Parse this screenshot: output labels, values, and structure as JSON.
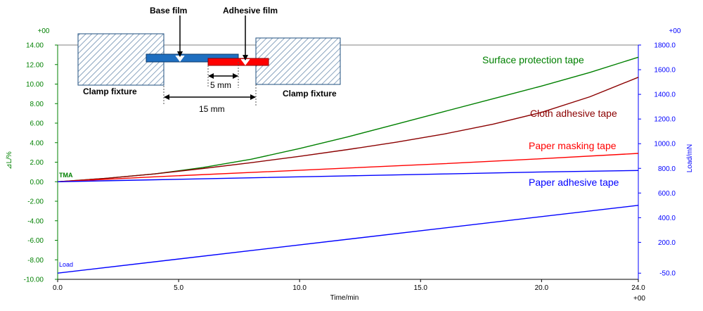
{
  "colors": {
    "left_axis": "#008000",
    "right_axis": "#0000ff",
    "surface_protection": "#008000",
    "cloth_adhesive": "#8b0000",
    "paper_masking": "#ff0000",
    "paper_adhesive": "#0000ff",
    "load": "#0000ff",
    "base_film": "#1f6fc0",
    "adhesive_film": "#ff0000",
    "fixture_hatch": "#6f8fb0"
  },
  "chart_data": {
    "type": "line",
    "title": "",
    "xlabel": "Time/min",
    "ylabel_left": "⊿L/%",
    "ylabel_right": "Load/mN",
    "x_exponent_label": "+00",
    "y_left_exponent_label": "+00",
    "y_right_exponent_label": "+00",
    "xlim": [
      0,
      24
    ],
    "ylim_left": [
      -10,
      14
    ],
    "ylim_right": [
      -100,
      1800
    ],
    "x_ticks": [
      "0.0",
      "5.0",
      "10.0",
      "15.0",
      "20.0",
      "24.0"
    ],
    "y_left_ticks": [
      "-10.00",
      "-8.00",
      "-6.00",
      "-4.00",
      "-2.00",
      "0.00",
      "2.00",
      "4.00",
      "6.00",
      "8.00",
      "10.00",
      "12.00",
      "14.00"
    ],
    "y_right_ticks": [
      "-50.0",
      "200.0",
      "400.0",
      "600.0",
      "800.0",
      "1000.0",
      "1200.0",
      "1400.0",
      "1600.0",
      "1800.0"
    ],
    "grid": false,
    "series": [
      {
        "name": "Surface protection tape",
        "axis": "left",
        "x": [
          0,
          2,
          4,
          6,
          8,
          10,
          12,
          14,
          16,
          18,
          20,
          22,
          24
        ],
        "y": [
          0,
          0.35,
          0.8,
          1.45,
          2.3,
          3.4,
          4.6,
          5.9,
          7.2,
          8.5,
          9.8,
          11.2,
          12.75
        ]
      },
      {
        "name": "Cloth adhesive tape",
        "axis": "left",
        "x": [
          0,
          2,
          4,
          6,
          8,
          10,
          12,
          14,
          16,
          18,
          20,
          22,
          24
        ],
        "y": [
          0,
          0.35,
          0.8,
          1.35,
          1.95,
          2.6,
          3.3,
          4.05,
          4.9,
          5.9,
          7.1,
          8.7,
          10.7
        ]
      },
      {
        "name": "Paper masking tape",
        "axis": "left",
        "x": [
          0,
          4,
          8,
          12,
          16,
          20,
          24
        ],
        "y": [
          0,
          0.5,
          0.95,
          1.4,
          1.85,
          2.35,
          2.9
        ]
      },
      {
        "name": "Paper adhesive tape",
        "axis": "left",
        "x": [
          0,
          4,
          8,
          12,
          16,
          20,
          24
        ],
        "y": [
          0,
          0.2,
          0.4,
          0.6,
          0.8,
          1.0,
          1.15
        ]
      },
      {
        "name": "Load",
        "axis": "right",
        "x": [
          0,
          24
        ],
        "y": [
          -50,
          500
        ]
      }
    ],
    "annotations": [
      "TMA"
    ]
  },
  "inset": {
    "base_film": "Base film",
    "adhesive_film": "Adhesive film",
    "clamp_left": "Clamp fixture",
    "clamp_right": "Clamp fixture",
    "dim_small": "5 mm",
    "dim_large": "15 mm"
  }
}
